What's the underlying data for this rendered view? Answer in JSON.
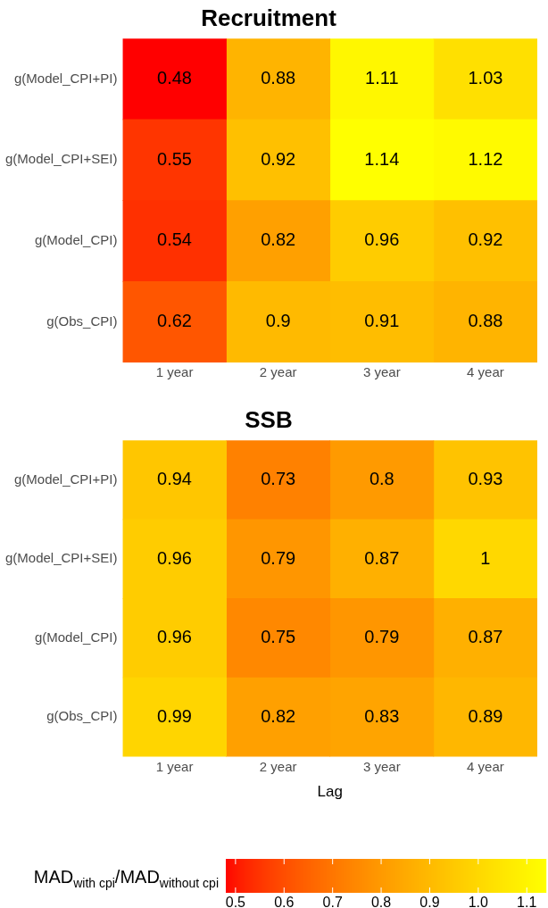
{
  "chart_data": [
    {
      "type": "heatmap",
      "title": "Recruitment",
      "categories": [
        "1 year",
        "2 year",
        "3 year",
        "4 year"
      ],
      "y_categories": [
        "g(Model_CPI+PI)",
        "g(Model_CPI+SEI)",
        "g(Model_CPI)",
        "g(Obs_CPI)"
      ],
      "cells": [
        [
          0.48,
          0.88,
          1.11,
          1.03
        ],
        [
          0.55,
          0.92,
          1.14,
          1.12
        ],
        [
          0.54,
          0.82,
          0.96,
          0.92
        ],
        [
          0.62,
          0.9,
          0.91,
          0.88
        ]
      ],
      "data_labels": true
    },
    {
      "type": "heatmap",
      "title": "SSB",
      "xlabel": "Lag",
      "categories": [
        "1 year",
        "2 year",
        "3 year",
        "4 year"
      ],
      "y_categories": [
        "g(Model_CPI+PI)",
        "g(Model_CPI+SEI)",
        "g(Model_CPI)",
        "g(Obs_CPI)"
      ],
      "cells": [
        [
          0.94,
          0.73,
          0.8,
          0.93
        ],
        [
          0.96,
          0.79,
          0.87,
          1
        ],
        [
          0.96,
          0.75,
          0.79,
          0.87
        ],
        [
          0.99,
          0.82,
          0.83,
          0.89
        ]
      ],
      "data_labels": true,
      "clim": [
        0.48,
        1.14
      ],
      "cticks": [
        {
          "value": 0.5,
          "label": "0.5"
        },
        {
          "value": 0.6,
          "label": "0.6"
        },
        {
          "value": 0.7,
          "label": "0.7"
        },
        {
          "value": 0.8,
          "label": "0.8"
        },
        {
          "value": 0.9,
          "label": "0.9"
        },
        {
          "value": 1.0,
          "label": "1.0"
        },
        {
          "value": 1.1,
          "label": "1.1"
        }
      ],
      "clabel": "MAD$_{with cpi}$/MAD$_{without cpi}$"
    }
  ]
}
